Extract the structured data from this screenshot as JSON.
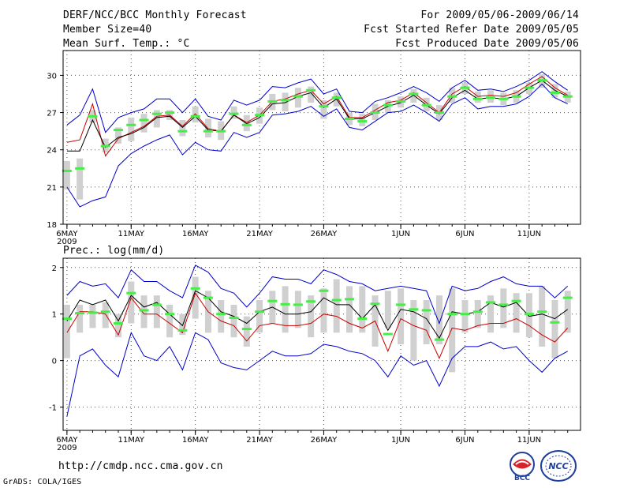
{
  "header": {
    "title": "DERF/NCC/BCC Monthly Forecast",
    "member_size": "Member Size=40",
    "variable": "Mean Surf. Temp.: °C",
    "period": "For 2009/05/06-2009/06/14",
    "refer_date": "Fcst Started Refer Date 2009/05/05",
    "produced_date": "Fcst Produced Date 2009/05/06"
  },
  "footer": {
    "url": "http://cmdp.ncc.cma.gov.cn",
    "credit": "GrADS: COLA/IGES",
    "logo_bcc": "BCC",
    "logo_ncc": "NCC"
  },
  "colors": {
    "box": "#d0d0d0",
    "median": "#44ee44",
    "ensemble_mean": "#000000",
    "climatology": "#cc0000",
    "extremes": "#0000cc",
    "grid": "#555555"
  },
  "chart_data": [
    {
      "type": "line",
      "title": "Mean Surf. Temp.: °C",
      "x_tick_labels": [
        "6MAY",
        "11MAY",
        "16MAY",
        "21MAY",
        "26MAY",
        "1JUN",
        "6JUN",
        "11JUN"
      ],
      "x_tick_days": [
        1,
        6,
        11,
        16,
        21,
        27,
        32,
        37
      ],
      "x_sub_label": "2009",
      "ylim": [
        18,
        32
      ],
      "yticks": [
        18,
        21,
        24,
        27,
        30
      ],
      "days": [
        1,
        2,
        3,
        4,
        5,
        6,
        7,
        8,
        9,
        10,
        11,
        12,
        13,
        14,
        15,
        16,
        17,
        18,
        19,
        20,
        21,
        22,
        23,
        24,
        25,
        26,
        27,
        28,
        29,
        30,
        31,
        32,
        33,
        34,
        35,
        36,
        37,
        38,
        39,
        40
      ],
      "series": [
        {
          "name": "box_top",
          "values": [
            23.1,
            23.3,
            27.2,
            24.9,
            25.8,
            26.6,
            26.9,
            27.2,
            27.2,
            26.4,
            27.5,
            26.5,
            26.3,
            27.5,
            26.8,
            27.4,
            28.5,
            28.6,
            29.0,
            29.1,
            28.0,
            28.6,
            27.0,
            26.9,
            27.7,
            28.0,
            28.3,
            28.9,
            28.2,
            27.6,
            29.0,
            29.4,
            28.7,
            28.8,
            28.6,
            28.8,
            29.4,
            30.1,
            29.3,
            28.7
          ]
        },
        {
          "name": "box_bottom",
          "values": [
            20.8,
            20.0,
            26.2,
            23.8,
            24.5,
            24.7,
            25.4,
            25.8,
            26.4,
            25.1,
            26.2,
            25.0,
            24.8,
            26.5,
            25.5,
            26.1,
            27.2,
            27.1,
            27.4,
            27.8,
            26.5,
            27.5,
            26.0,
            25.9,
            26.4,
            27.0,
            27.4,
            27.8,
            27.1,
            26.4,
            27.8,
            28.5,
            27.8,
            27.8,
            27.6,
            27.8,
            28.5,
            29.0,
            28.2,
            27.8
          ]
        },
        {
          "name": "median",
          "values": [
            22.3,
            22.5,
            26.7,
            24.3,
            25.6,
            26.0,
            26.4,
            26.9,
            27.0,
            25.5,
            26.7,
            25.5,
            25.5,
            26.9,
            26.0,
            26.8,
            27.9,
            28.0,
            28.3,
            28.8,
            27.5,
            28.2,
            26.5,
            26.3,
            27.0,
            27.6,
            27.9,
            28.5,
            27.6,
            27.0,
            28.3,
            29.0,
            28.1,
            28.2,
            28.1,
            28.3,
            29.0,
            29.6,
            28.6,
            28.3
          ]
        },
        {
          "name": "ensemble_mean",
          "values": [
            23.9,
            23.9,
            26.4,
            24.2,
            25.0,
            25.3,
            25.8,
            26.6,
            26.7,
            25.8,
            26.7,
            25.6,
            25.5,
            26.8,
            26.1,
            26.6,
            27.7,
            27.8,
            28.3,
            28.6,
            27.4,
            28.1,
            26.5,
            26.5,
            27.0,
            27.5,
            27.8,
            28.4,
            27.6,
            26.9,
            28.2,
            28.8,
            28.1,
            28.2,
            28.1,
            28.3,
            29.0,
            29.6,
            28.8,
            28.3
          ]
        },
        {
          "name": "climatology",
          "values": [
            24.6,
            24.8,
            27.7,
            23.5,
            24.9,
            25.4,
            25.9,
            26.7,
            26.8,
            25.9,
            26.9,
            25.7,
            25.5,
            26.8,
            26.2,
            26.8,
            27.9,
            28.1,
            28.5,
            28.8,
            27.7,
            28.3,
            26.6,
            26.6,
            27.2,
            27.8,
            28.0,
            28.6,
            27.8,
            27.0,
            28.5,
            29.1,
            28.3,
            28.4,
            28.3,
            28.6,
            29.3,
            29.9,
            29.0,
            28.4
          ]
        },
        {
          "name": "maximum",
          "values": [
            26.0,
            26.8,
            28.9,
            25.4,
            26.6,
            27.0,
            27.3,
            28.1,
            28.1,
            27.0,
            28.1,
            26.7,
            26.4,
            28.0,
            27.6,
            28.0,
            29.1,
            29.0,
            29.4,
            29.7,
            28.5,
            28.9,
            27.1,
            27.0,
            27.9,
            28.2,
            28.6,
            29.1,
            28.6,
            27.9,
            29.0,
            29.6,
            28.8,
            28.9,
            28.7,
            29.1,
            29.6,
            30.3,
            29.5,
            28.8
          ]
        },
        {
          "name": "minimum",
          "values": [
            21.0,
            19.4,
            19.9,
            20.2,
            22.7,
            23.7,
            24.3,
            24.8,
            25.2,
            23.6,
            24.6,
            24.0,
            23.9,
            25.4,
            25.0,
            25.4,
            26.8,
            26.9,
            27.1,
            27.5,
            26.7,
            27.3,
            25.8,
            25.6,
            26.3,
            27.0,
            27.1,
            27.6,
            27.0,
            26.3,
            27.7,
            28.2,
            27.3,
            27.5,
            27.5,
            27.7,
            28.3,
            29.3,
            28.2,
            27.7
          ]
        }
      ]
    },
    {
      "type": "line",
      "title": "Prec.: log(mm/d)",
      "x_tick_labels": [
        "6MAY",
        "11MAY",
        "16MAY",
        "21MAY",
        "26MAY",
        "1JUN",
        "6JUN",
        "11JUN"
      ],
      "x_tick_days": [
        1,
        6,
        11,
        16,
        21,
        27,
        32,
        37
      ],
      "x_sub_label": "2009",
      "ylim": [
        -1.5,
        2.2
      ],
      "yticks": [
        -1,
        0,
        1,
        2
      ],
      "days": [
        1,
        2,
        3,
        4,
        5,
        6,
        7,
        8,
        9,
        10,
        11,
        12,
        13,
        14,
        15,
        16,
        17,
        18,
        19,
        20,
        21,
        22,
        23,
        24,
        25,
        26,
        27,
        28,
        29,
        30,
        31,
        32,
        33,
        34,
        35,
        36,
        37,
        38,
        39,
        40
      ],
      "series": [
        {
          "name": "box_top",
          "values": [
            1.2,
            1.2,
            1.2,
            1.25,
            1.0,
            1.7,
            1.4,
            1.4,
            1.2,
            1.0,
            1.8,
            1.5,
            1.3,
            1.2,
            0.95,
            1.3,
            1.5,
            1.6,
            1.5,
            1.4,
            1.55,
            1.75,
            1.6,
            1.6,
            1.4,
            1.5,
            1.55,
            1.3,
            1.3,
            1.4,
            1.55,
            1.3,
            1.3,
            1.4,
            1.55,
            1.45,
            1.45,
            1.6,
            1.3,
            1.5
          ]
        },
        {
          "name": "box_bottom",
          "values": [
            0.05,
            0.6,
            0.7,
            0.7,
            0.5,
            0.8,
            0.7,
            0.7,
            0.5,
            0.55,
            0.9,
            0.6,
            0.6,
            0.5,
            0.3,
            0.6,
            0.8,
            0.6,
            0.7,
            0.5,
            0.6,
            0.6,
            0.6,
            0.6,
            0.3,
            0.7,
            0.35,
            0.0,
            0.35,
            0.35,
            -0.25,
            0.6,
            0.7,
            0.6,
            0.7,
            0.6,
            0.5,
            0.3,
            0.05,
            0.6
          ]
        },
        {
          "name": "median",
          "values": [
            0.9,
            1.02,
            1.03,
            1.05,
            0.8,
            1.45,
            1.08,
            1.2,
            1.0,
            0.65,
            1.55,
            1.35,
            1.0,
            0.92,
            0.68,
            1.05,
            1.28,
            1.21,
            1.2,
            1.27,
            1.5,
            1.3,
            1.32,
            0.9,
            1.22,
            0.57,
            1.2,
            1.1,
            1.08,
            0.45,
            1.0,
            1.0,
            1.05,
            1.25,
            1.2,
            1.28,
            1.0,
            1.05,
            0.82,
            1.35
          ]
        },
        {
          "name": "ensemble_mean",
          "values": [
            0.85,
            1.3,
            1.2,
            1.3,
            0.85,
            1.4,
            1.15,
            1.25,
            1.0,
            0.75,
            1.5,
            1.35,
            1.05,
            0.95,
            0.8,
            1.05,
            1.15,
            1.0,
            1.0,
            1.05,
            1.35,
            1.2,
            1.2,
            0.9,
            1.2,
            0.65,
            1.1,
            1.05,
            0.9,
            0.48,
            1.05,
            1.0,
            1.05,
            1.25,
            1.15,
            1.25,
            0.95,
            1.0,
            0.9,
            1.1
          ]
        },
        {
          "name": "climatology",
          "values": [
            0.6,
            1.05,
            1.05,
            1.0,
            0.55,
            1.35,
            1.0,
            1.0,
            0.8,
            0.6,
            1.45,
            1.05,
            0.85,
            0.75,
            0.42,
            0.75,
            0.8,
            0.75,
            0.75,
            0.8,
            1.0,
            0.95,
            0.8,
            0.7,
            0.85,
            0.2,
            0.9,
            0.75,
            0.65,
            0.05,
            0.7,
            0.65,
            0.75,
            0.8,
            0.8,
            0.9,
            0.75,
            0.55,
            0.4,
            0.7
          ]
        },
        {
          "name": "maximum",
          "values": [
            1.4,
            1.7,
            1.6,
            1.65,
            1.35,
            1.95,
            1.7,
            1.7,
            1.5,
            1.35,
            2.05,
            1.9,
            1.55,
            1.45,
            1.15,
            1.45,
            1.8,
            1.75,
            1.75,
            1.65,
            1.95,
            1.85,
            1.7,
            1.65,
            1.5,
            1.55,
            1.6,
            1.55,
            1.5,
            0.8,
            1.6,
            1.5,
            1.55,
            1.7,
            1.8,
            1.65,
            1.6,
            1.6,
            1.35,
            1.6
          ]
        },
        {
          "name": "minimum",
          "values": [
            -1.2,
            0.1,
            0.25,
            -0.1,
            -0.35,
            0.6,
            0.1,
            0.0,
            0.3,
            -0.2,
            0.6,
            0.45,
            -0.05,
            -0.15,
            -0.2,
            0.0,
            0.2,
            0.1,
            0.1,
            0.15,
            0.35,
            0.3,
            0.2,
            0.15,
            0.0,
            -0.35,
            0.1,
            -0.1,
            0.0,
            -0.55,
            0.05,
            0.3,
            0.3,
            0.4,
            0.25,
            0.3,
            0.0,
            -0.25,
            0.05,
            0.2
          ]
        }
      ]
    }
  ]
}
